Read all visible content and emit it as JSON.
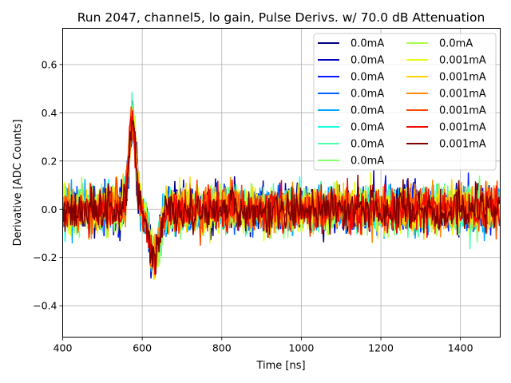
{
  "chart_data": {
    "type": "line",
    "title": "Run 2047, channel5, lo gain, Pulse Derivs. w/ 70.0 dB Attenuation",
    "xlabel": "Time [ns]",
    "ylabel": "Derivative [ADC Counts]",
    "xlim": [
      400,
      1500
    ],
    "ylim": [
      -0.53,
      0.75
    ],
    "xticks": [
      400,
      600,
      800,
      1000,
      1200,
      1400
    ],
    "yticks": [
      -0.4,
      -0.2,
      0.0,
      0.2,
      0.4,
      0.6
    ],
    "xtick_labels": [
      "400",
      "600",
      "800",
      "1000",
      "1200",
      "1400"
    ],
    "ytick_labels": [
      "−0.4",
      "−0.2",
      "0.0",
      "0.2",
      "0.4",
      "0.6"
    ],
    "grid": true,
    "legend_position": "top-right",
    "legend_columns": 2,
    "series_note_x_range": [
      400,
      1500
    ],
    "series": [
      {
        "name": "0.0mA",
        "color": "#000080",
        "amplitude": 0.12,
        "seed": 1
      },
      {
        "name": "0.0mA",
        "color": "#0000bf",
        "amplitude": 0.12,
        "seed": 2
      },
      {
        "name": "0.0mA",
        "color": "#0018ff",
        "amplitude": 0.12,
        "seed": 3
      },
      {
        "name": "0.0mA",
        "color": "#0060ff",
        "amplitude": 0.12,
        "seed": 4
      },
      {
        "name": "0.0mA",
        "color": "#00a8ff",
        "amplitude": 0.12,
        "seed": 5
      },
      {
        "name": "0.0mA",
        "color": "#16ffe1",
        "amplitude": 0.12,
        "seed": 6
      },
      {
        "name": "0.0mA",
        "color": "#4dffaa",
        "amplitude": 0.12,
        "seed": 7
      },
      {
        "name": "0.0mA",
        "color": "#86ff71",
        "amplitude": 0.12,
        "seed": 8
      },
      {
        "name": "0.0mA",
        "color": "#aaff4d",
        "amplitude": 0.12,
        "seed": 9
      },
      {
        "name": "0.001mA",
        "color": "#e4ff13",
        "amplitude": 0.12,
        "seed": 10
      },
      {
        "name": "0.001mA",
        "color": "#ffd200",
        "amplitude": 0.12,
        "seed": 11
      },
      {
        "name": "0.001mA",
        "color": "#ff8c00",
        "amplitude": 0.12,
        "seed": 12
      },
      {
        "name": "0.001mA",
        "color": "#ff4a00",
        "amplitude": 0.12,
        "seed": 13
      },
      {
        "name": "0.001mA",
        "color": "#f10800",
        "amplitude": 0.12,
        "seed": 14
      },
      {
        "name": "0.001mA",
        "color": "#800000",
        "amplitude": 0.12,
        "seed": 15
      }
    ],
    "features": {
      "pulse_peak": {
        "x": 575,
        "y": 0.42
      },
      "pulse_trough": {
        "x": 630,
        "y": -0.3
      }
    }
  }
}
